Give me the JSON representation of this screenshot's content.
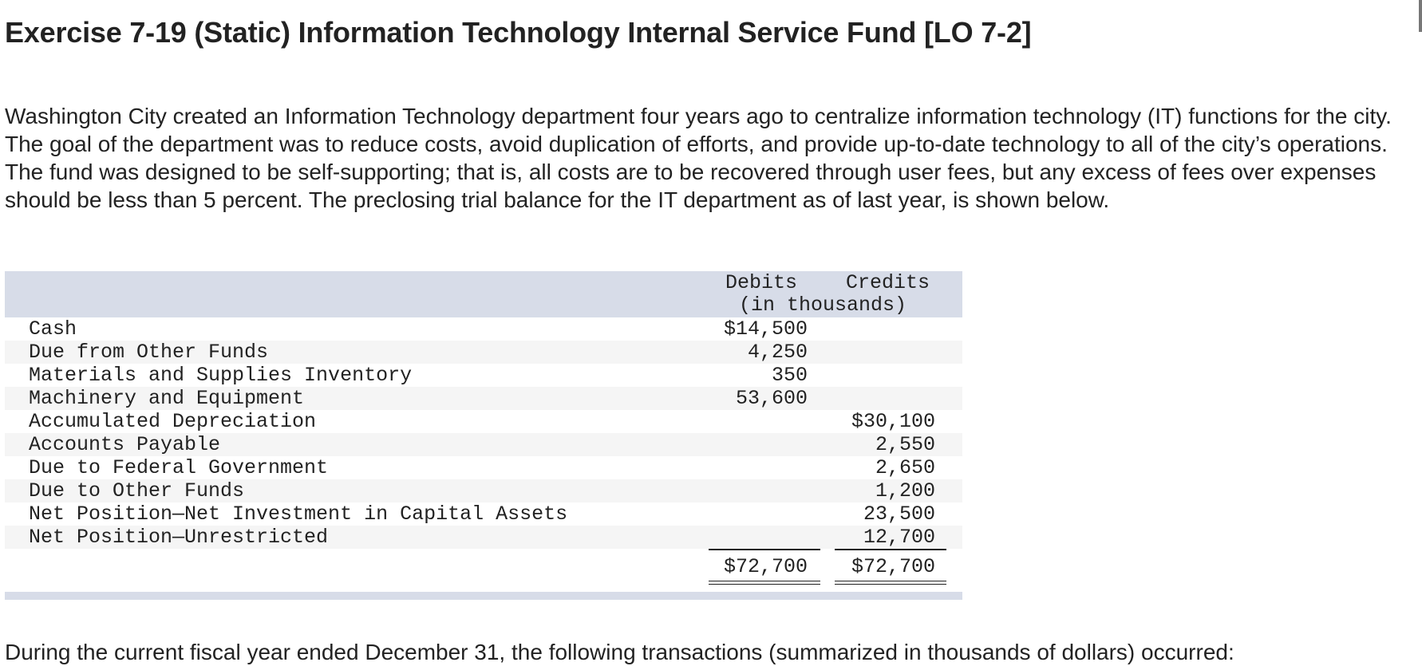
{
  "title": "Exercise 7-19 (Static) Information Technology Internal Service Fund [LO 7-2]",
  "intro": "Washington City created an Information Technology department four years ago to centralize information technology (IT) functions for the city. The goal of the department was to reduce costs, avoid duplication of efforts, and provide up-to-date technology to all of the city’s operations. The fund was designed to be self-supporting; that is, all costs are to be recovered through user fees, but any excess of fees over expenses should be less than 5 percent. The preclosing trial balance for the IT department as of last year, is shown below.",
  "trial_balance": {
    "debits_header": "Debits",
    "credits_header": "Credits",
    "units_header": "(in thousands)",
    "rows": [
      {
        "account": "Cash",
        "debit": "$14,500",
        "credit": ""
      },
      {
        "account": "Due from Other Funds",
        "debit": "4,250",
        "credit": ""
      },
      {
        "account": "Materials and Supplies Inventory",
        "debit": "350",
        "credit": ""
      },
      {
        "account": "Machinery and Equipment",
        "debit": "53,600",
        "credit": ""
      },
      {
        "account": "Accumulated Depreciation",
        "debit": "",
        "credit": "$30,100"
      },
      {
        "account": "Accounts Payable",
        "debit": "",
        "credit": "2,550"
      },
      {
        "account": "Due to Federal Government",
        "debit": "",
        "credit": "2,650"
      },
      {
        "account": "Due to Other Funds",
        "debit": "",
        "credit": "1,200"
      },
      {
        "account": "Net Position—Net Investment in Capital Assets",
        "debit": "",
        "credit": "23,500"
      },
      {
        "account": "Net Position—Unrestricted",
        "debit": "",
        "credit": "12,700"
      }
    ],
    "total_debit": "$72,700",
    "total_credit": "$72,700"
  },
  "after_text": "During the current fiscal year ended December 31, the following transactions (summarized in thousands of dollars) occurred:"
}
